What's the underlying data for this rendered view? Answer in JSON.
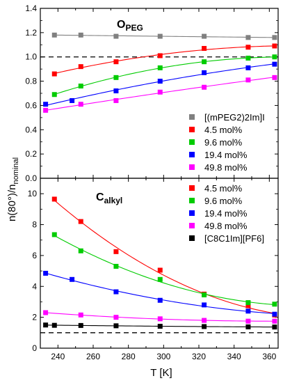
{
  "figure": {
    "ylabel": "n(80°)/n",
    "ylabel_sub": "nominal",
    "xlabel": "T [K]"
  },
  "chart_data": [
    {
      "type": "scatter",
      "panel": "top",
      "title": "O",
      "title_sub": "PEG",
      "xlabel": "T [K]",
      "ylabel": "n(80°)/n_nominal",
      "xlim": [
        230,
        365
      ],
      "ylim": [
        0.0,
        1.4
      ],
      "y_ticks": [
        "0.0",
        "0.2",
        "0.4",
        "0.6",
        "0.8",
        "1.0",
        "1.2",
        "1.4"
      ],
      "reference_line": 1.0,
      "legend_position": "center-right",
      "series": [
        {
          "name": "[(mPEG2)2Im]I",
          "color": "#808080",
          "x": [
            238,
            253,
            273,
            298,
            323,
            348,
            363
          ],
          "y": [
            1.18,
            1.18,
            1.17,
            1.17,
            1.17,
            1.16,
            1.16
          ]
        },
        {
          "name": "4.5 mol%",
          "color": "#ff0000",
          "x": [
            238,
            253,
            273,
            298,
            323,
            348,
            363
          ],
          "y": [
            0.86,
            0.92,
            0.96,
            1.01,
            1.07,
            1.08,
            1.09
          ]
        },
        {
          "name": "9.6 mol%",
          "color": "#00cc00",
          "x": [
            238,
            253,
            273,
            298,
            323,
            348,
            363
          ],
          "y": [
            0.69,
            0.76,
            0.83,
            0.91,
            0.96,
            0.99,
            1.0
          ]
        },
        {
          "name": "19.4 mol%",
          "color": "#0000ff",
          "x": [
            233,
            248,
            273,
            298,
            323,
            348,
            363
          ],
          "y": [
            0.61,
            0.64,
            0.72,
            0.8,
            0.87,
            0.91,
            0.94
          ]
        },
        {
          "name": "49.8 mol%",
          "color": "#ff00ff",
          "x": [
            233,
            253,
            273,
            298,
            323,
            348,
            363
          ],
          "y": [
            0.56,
            0.61,
            0.64,
            0.71,
            0.75,
            0.81,
            0.83
          ]
        }
      ]
    },
    {
      "type": "scatter",
      "panel": "bottom",
      "title": "C",
      "title_sub": "alkyl",
      "xlabel": "T [K]",
      "ylabel": "n(80°)/n_nominal",
      "xlim": [
        230,
        365
      ],
      "ylim": [
        0,
        11
      ],
      "x_ticks": [
        "240",
        "260",
        "280",
        "300",
        "320",
        "340",
        "360"
      ],
      "y_ticks": [
        "0",
        "2",
        "4",
        "6",
        "8",
        "10"
      ],
      "reference_line": 1.0,
      "legend_position": "top-right",
      "series": [
        {
          "name": "4.5 mol%",
          "color": "#ff0000",
          "x": [
            238,
            253,
            273,
            298,
            323,
            348,
            363
          ],
          "y": [
            9.65,
            8.2,
            6.25,
            5.05,
            3.5,
            2.75,
            2.15
          ]
        },
        {
          "name": "9.6 mol%",
          "color": "#00cc00",
          "x": [
            238,
            253,
            273,
            298,
            323,
            348,
            363
          ],
          "y": [
            7.35,
            6.3,
            5.3,
            4.45,
            3.45,
            2.95,
            2.85
          ]
        },
        {
          "name": "19.4 mol%",
          "color": "#0000ff",
          "x": [
            233,
            248,
            273,
            298,
            323,
            348,
            363
          ],
          "y": [
            4.85,
            4.45,
            3.65,
            3.1,
            2.8,
            2.4,
            2.2
          ]
        },
        {
          "name": "49.8 mol%",
          "color": "#ff00ff",
          "x": [
            233,
            253,
            273,
            298,
            323,
            348,
            363
          ],
          "y": [
            2.3,
            2.15,
            2.0,
            1.9,
            1.8,
            1.75,
            1.75
          ]
        },
        {
          "name": "[C8C1Im][PF6]",
          "color": "#000000",
          "x": [
            233,
            238,
            253,
            273,
            298,
            323,
            348,
            363
          ],
          "y": [
            1.5,
            1.48,
            1.47,
            1.45,
            1.42,
            1.4,
            1.38,
            1.37
          ]
        }
      ]
    }
  ]
}
